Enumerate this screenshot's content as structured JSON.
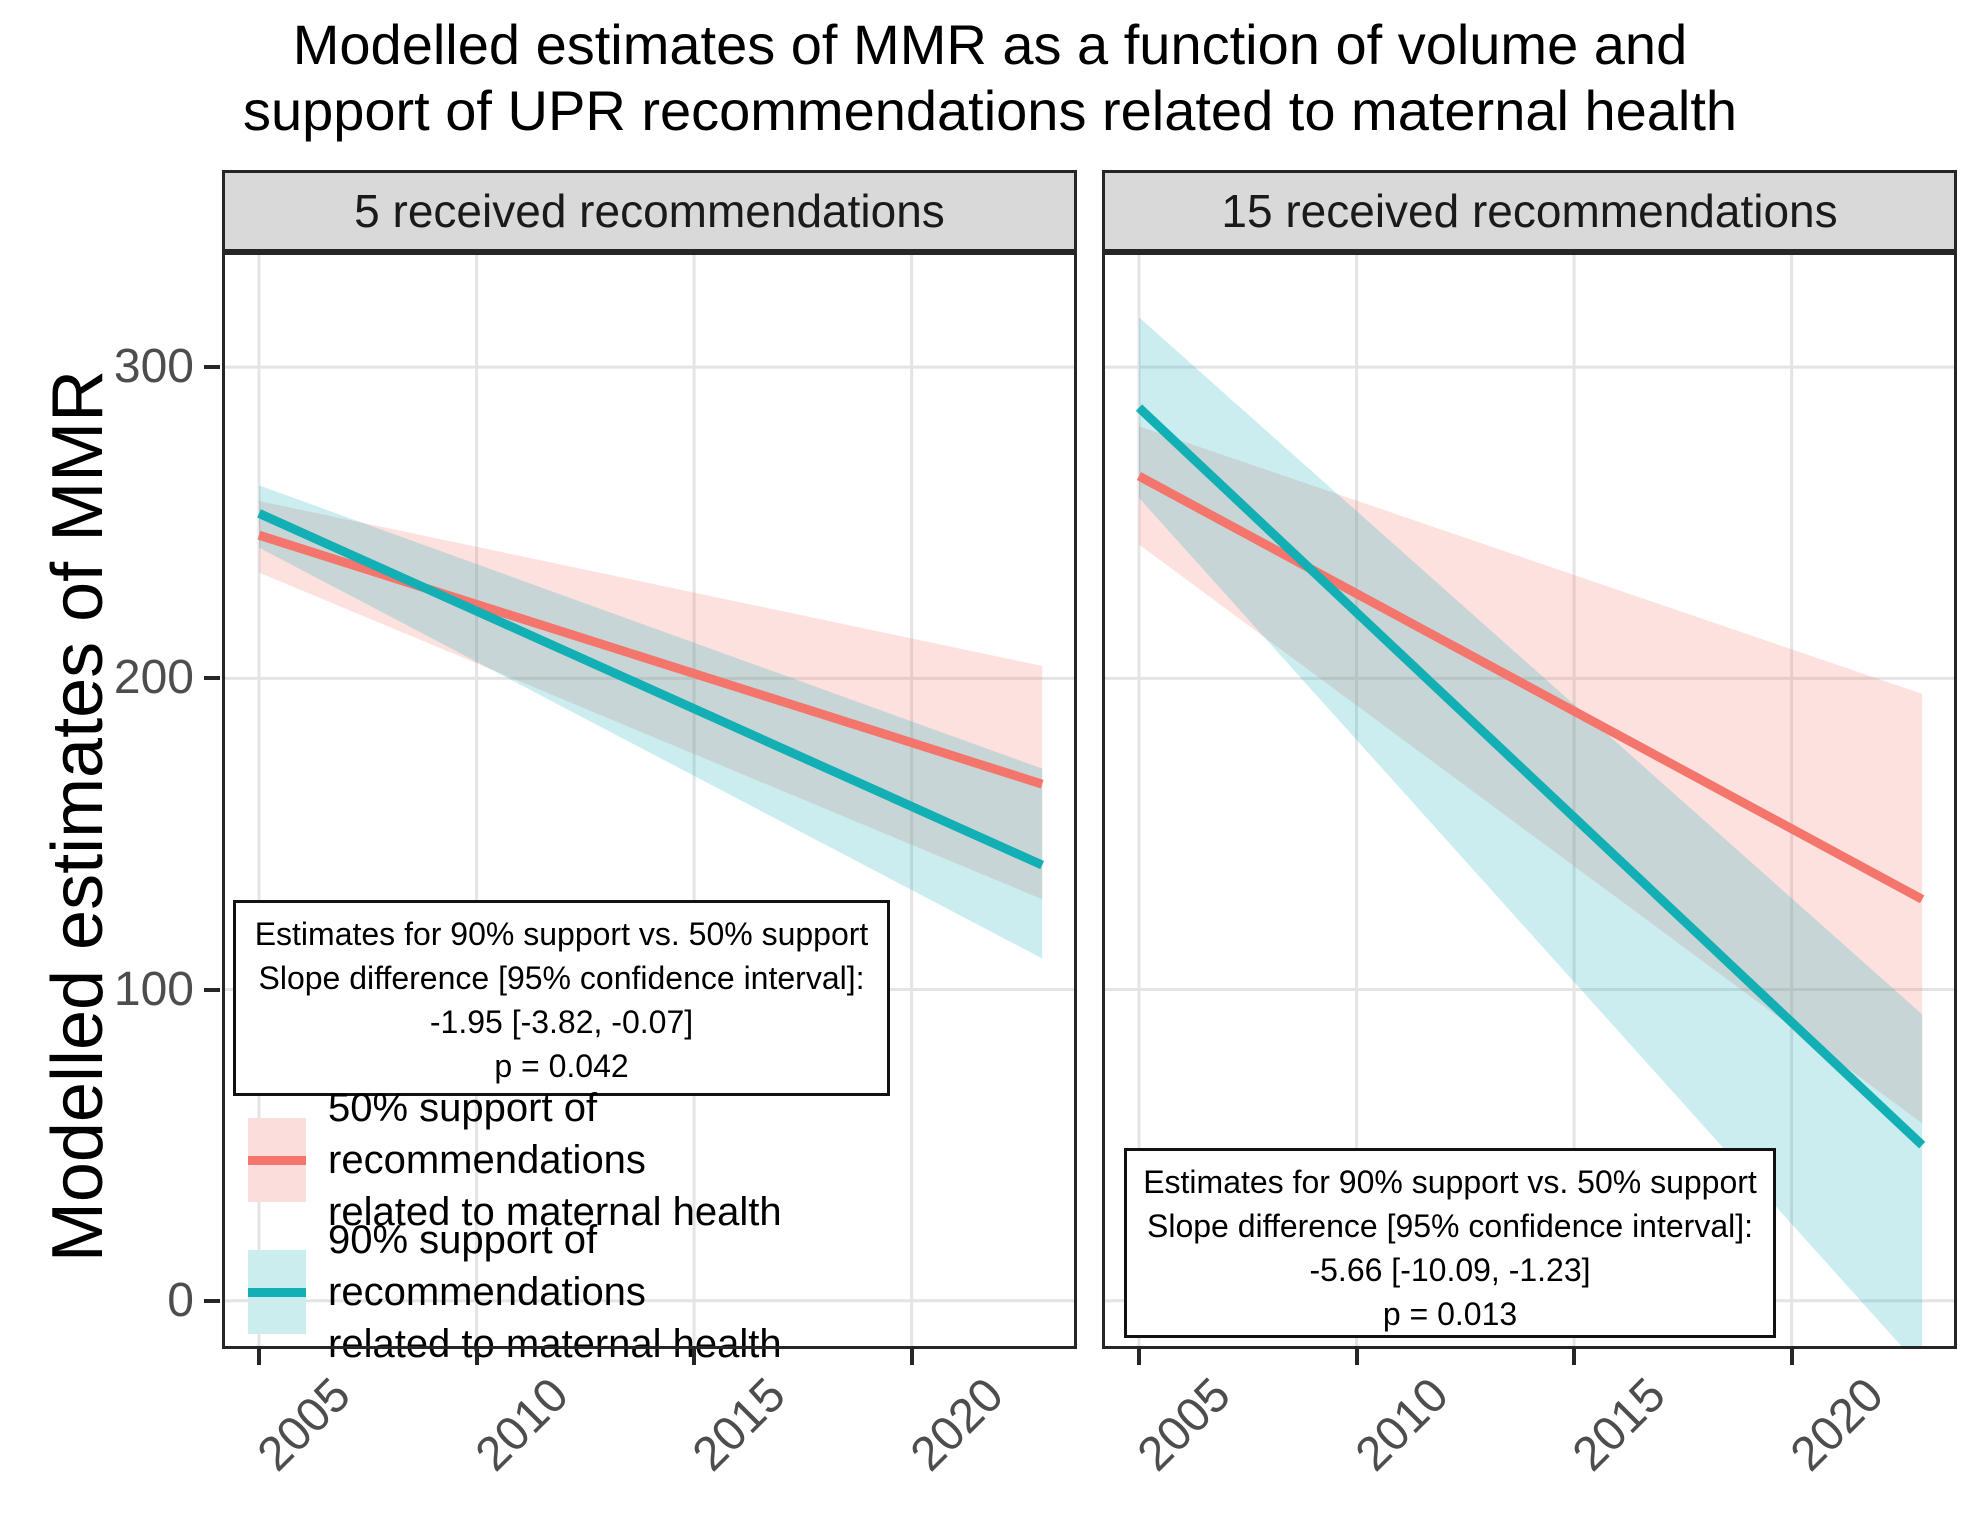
{
  "title": {
    "line1": "Modelled estimates of MMR as a function of volume and",
    "line2": "support of UPR recommendations related to maternal health"
  },
  "y_axis": {
    "label": "Modelled estimates of MMR"
  },
  "legend": {
    "entries": [
      {
        "label": "50% support of recommendations\nrelated to maternal health",
        "line_color": "#F3756C",
        "ribbon_color": "#FBDEDC"
      },
      {
        "label": "90% support of recommendations\nrelated to maternal health",
        "line_color": "#12AFB4",
        "ribbon_color": "#CBEDEE"
      }
    ]
  },
  "chart_data": {
    "type": "line",
    "title": "Modelled estimates of MMR as a function of volume and support of UPR recommendations related to maternal health",
    "xlabel": "",
    "ylabel": "Modelled estimates of MMR",
    "x_domain": [
      2004.15,
      2023.8
    ],
    "y_domain": [
      -15.5,
      337
    ],
    "x_ticks": [
      2005,
      2010,
      2015,
      2020
    ],
    "y_ticks": [
      0,
      100,
      200,
      300
    ],
    "grid": "major-only",
    "legend_position": "inside-left-panel",
    "facets": [
      {
        "label": "5 received recommendations",
        "annotation": {
          "lines": [
            "Estimates for 90% support vs. 50% support",
            "Slope difference [95% confidence interval]:",
            "-1.95 [-3.82, -0.07]",
            "p = 0.042"
          ]
        },
        "series": [
          {
            "name": "50% support of recommendations related to maternal health",
            "color": "#F3756C",
            "x": [
              2005,
              2023
            ],
            "y": [
              246,
              166
            ],
            "ci_upper": [
              257,
              204
            ],
            "ci_lower": [
              234,
              129
            ]
          },
          {
            "name": "90% support of recommendations related to maternal health",
            "color": "#12AFB4",
            "x": [
              2005,
              2023
            ],
            "y": [
              253,
              140
            ],
            "ci_upper": [
              262,
              171
            ],
            "ci_lower": [
              242,
              110
            ]
          }
        ]
      },
      {
        "label": "15 received recommendations",
        "annotation": {
          "lines": [
            "Estimates for 90% support vs. 50% support",
            "Slope difference [95% confidence interval]:",
            "-5.66 [-10.09, -1.23]",
            "p = 0.013"
          ]
        },
        "series": [
          {
            "name": "50% support of recommendations related to maternal health",
            "color": "#F3756C",
            "x": [
              2005,
              2023
            ],
            "y": [
              265,
              129
            ],
            "ci_upper": [
              281,
              195
            ],
            "ci_lower": [
              243,
              57
            ]
          },
          {
            "name": "90% support of recommendations related to maternal health",
            "color": "#12AFB4",
            "x": [
              2005,
              2023
            ],
            "y": [
              287,
              50
            ],
            "ci_upper": [
              316,
              92
            ],
            "ci_lower": [
              258,
              -22
            ]
          }
        ]
      }
    ]
  }
}
